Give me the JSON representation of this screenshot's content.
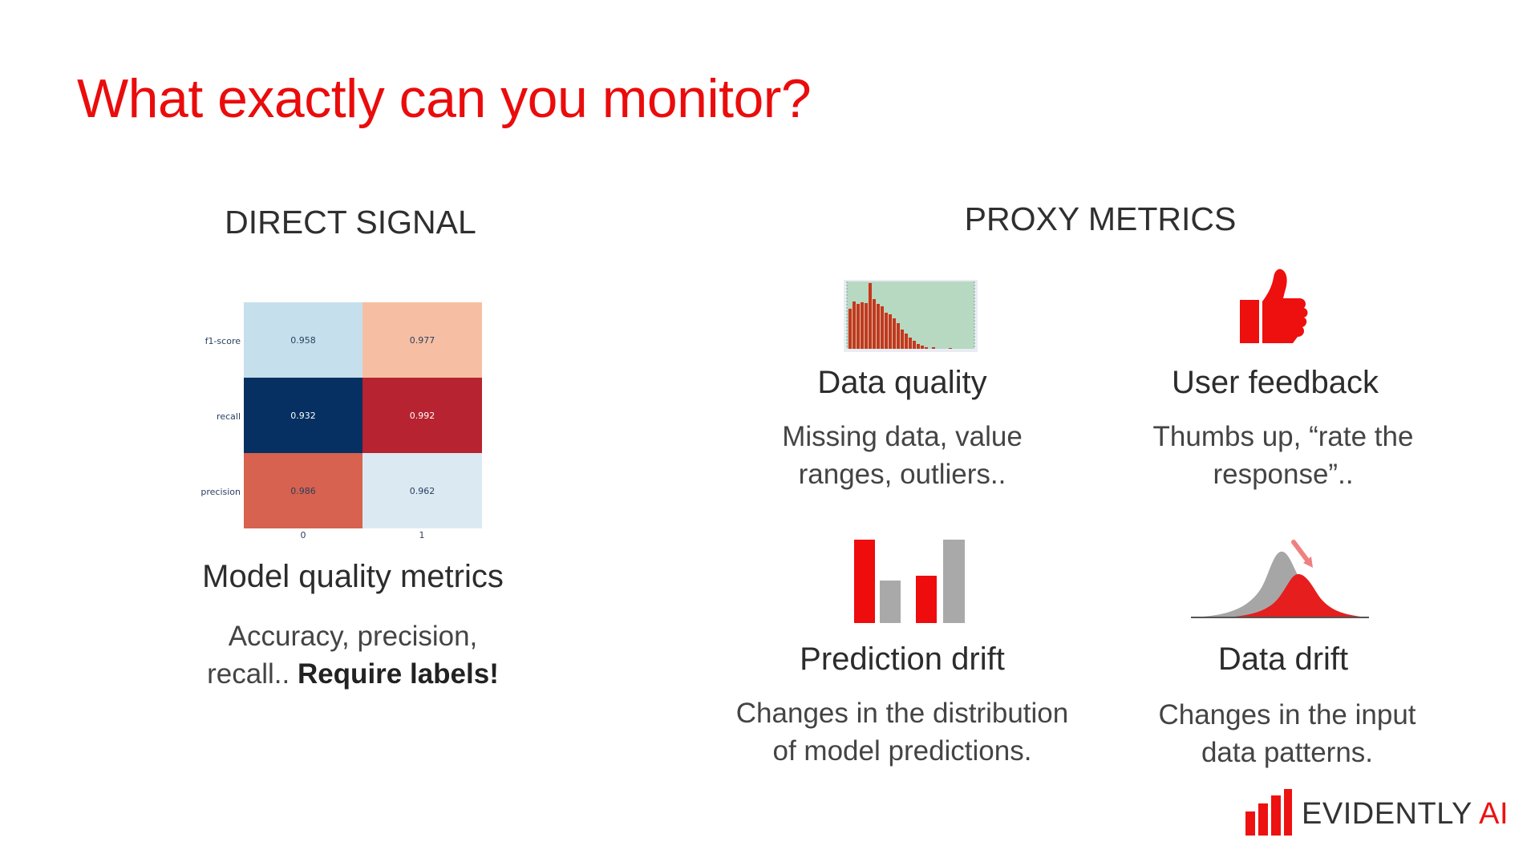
{
  "slide": {
    "title": "What exactly can you monitor?",
    "colors": {
      "accent": "#ea0c0c",
      "text": "#333333"
    }
  },
  "direct": {
    "heading": "DIRECT SIGNAL",
    "block_title": "Model quality metrics",
    "desc_line1": "Accuracy, precision,",
    "desc_line2_plain": "recall.. ",
    "desc_line2_bold": "Require labels!"
  },
  "proxy": {
    "heading": "PROXY METRICS",
    "data_quality": {
      "title": "Data quality",
      "desc_line1": "Missing data, value",
      "desc_line2": "ranges, outliers.."
    },
    "user_feedback": {
      "title": "User feedback",
      "desc_line1": "Thumbs up, “rate the",
      "desc_line2": "response”..",
      "icon": "thumbs-up-icon"
    },
    "prediction_drift": {
      "title": "Prediction drift",
      "desc_line1": "Changes in the distribution",
      "desc_line2": "of model predictions."
    },
    "data_drift": {
      "title": "Data drift",
      "desc_line1": "Changes in the input",
      "desc_line2": "data patterns."
    }
  },
  "logo": {
    "text_main": "EVIDENTLY ",
    "text_accent": "AI"
  },
  "chart_data": [
    {
      "type": "heatmap",
      "x": [
        "0",
        "1"
      ],
      "y": [
        "f1-score",
        "recall",
        "precision"
      ],
      "values": [
        [
          0.958,
          0.977
        ],
        [
          0.932,
          0.992
        ],
        [
          0.986,
          0.962
        ]
      ],
      "value_labels": [
        [
          "0.958",
          "0.977"
        ],
        [
          "0.932",
          "0.992"
        ],
        [
          "0.986",
          "0.962"
        ]
      ],
      "colors": [
        [
          "#c6dfec",
          "#f6bfa3"
        ],
        [
          "#053061",
          "#b72330"
        ],
        [
          "#d6624f",
          "#dbe9f2"
        ]
      ]
    }
  ]
}
